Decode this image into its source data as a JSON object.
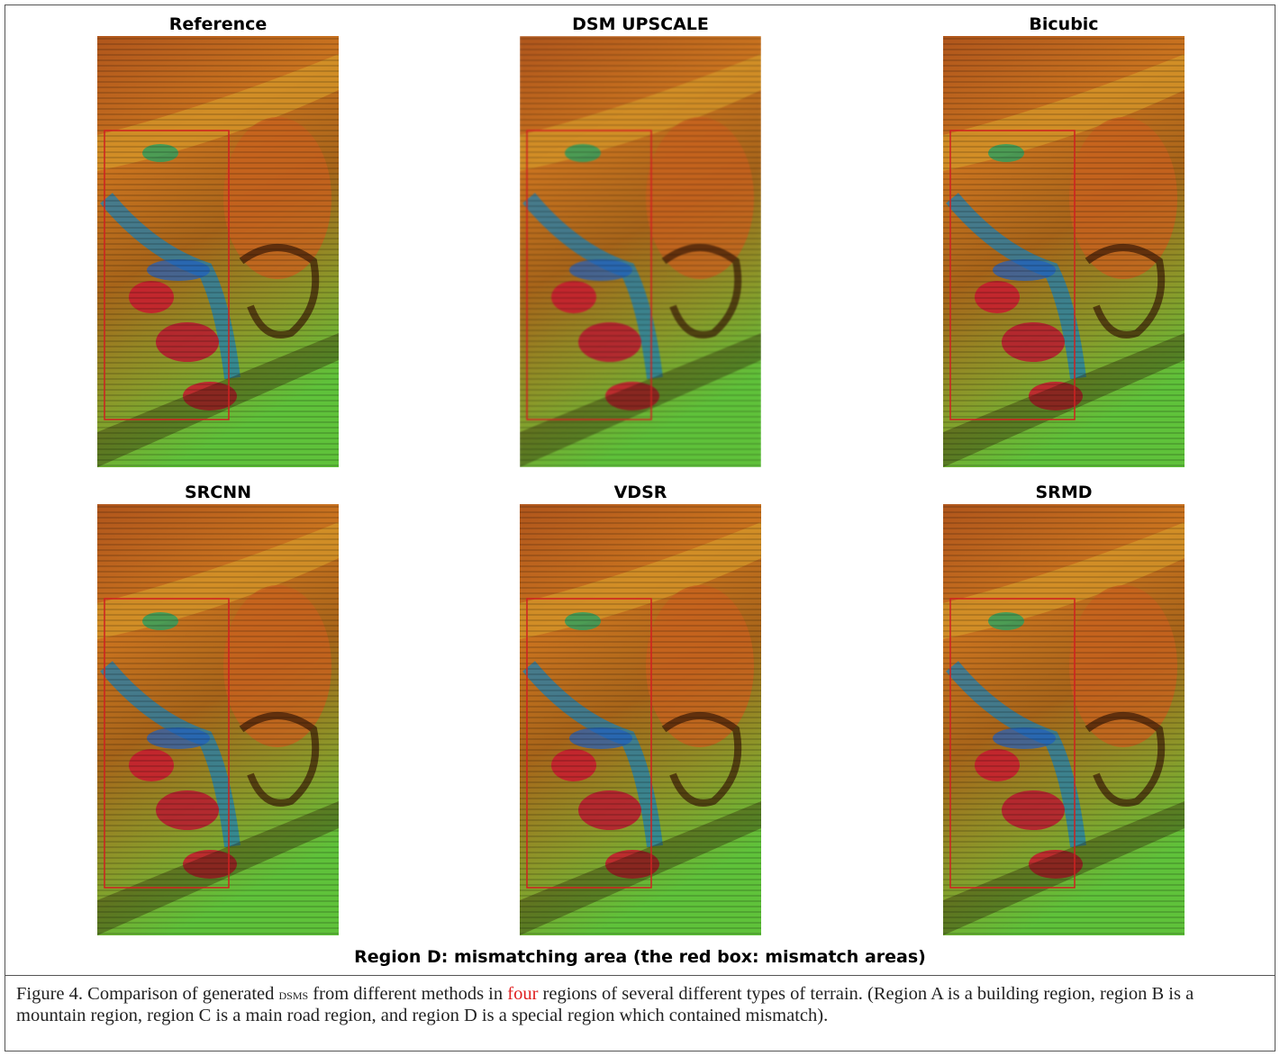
{
  "panels": [
    {
      "title": "Reference"
    },
    {
      "title": "DSM UPSCALE"
    },
    {
      "title": "Bicubic"
    },
    {
      "title": "SRCNN"
    },
    {
      "title": "VDSR"
    },
    {
      "title": "SRMD"
    }
  ],
  "region_caption": "Region D: mismatching area (the red box: mismatch areas)",
  "caption": {
    "prefix": "Figure 4. Comparison of generated ",
    "dsm": "DSMs",
    "mid": " from different methods in ",
    "highlight": "four",
    "suffix": " regions of several different types of terrain. (Region A is a building region, region B is a mountain region, region C is a main road region, and region D is a special region which contained mismatch)."
  }
}
